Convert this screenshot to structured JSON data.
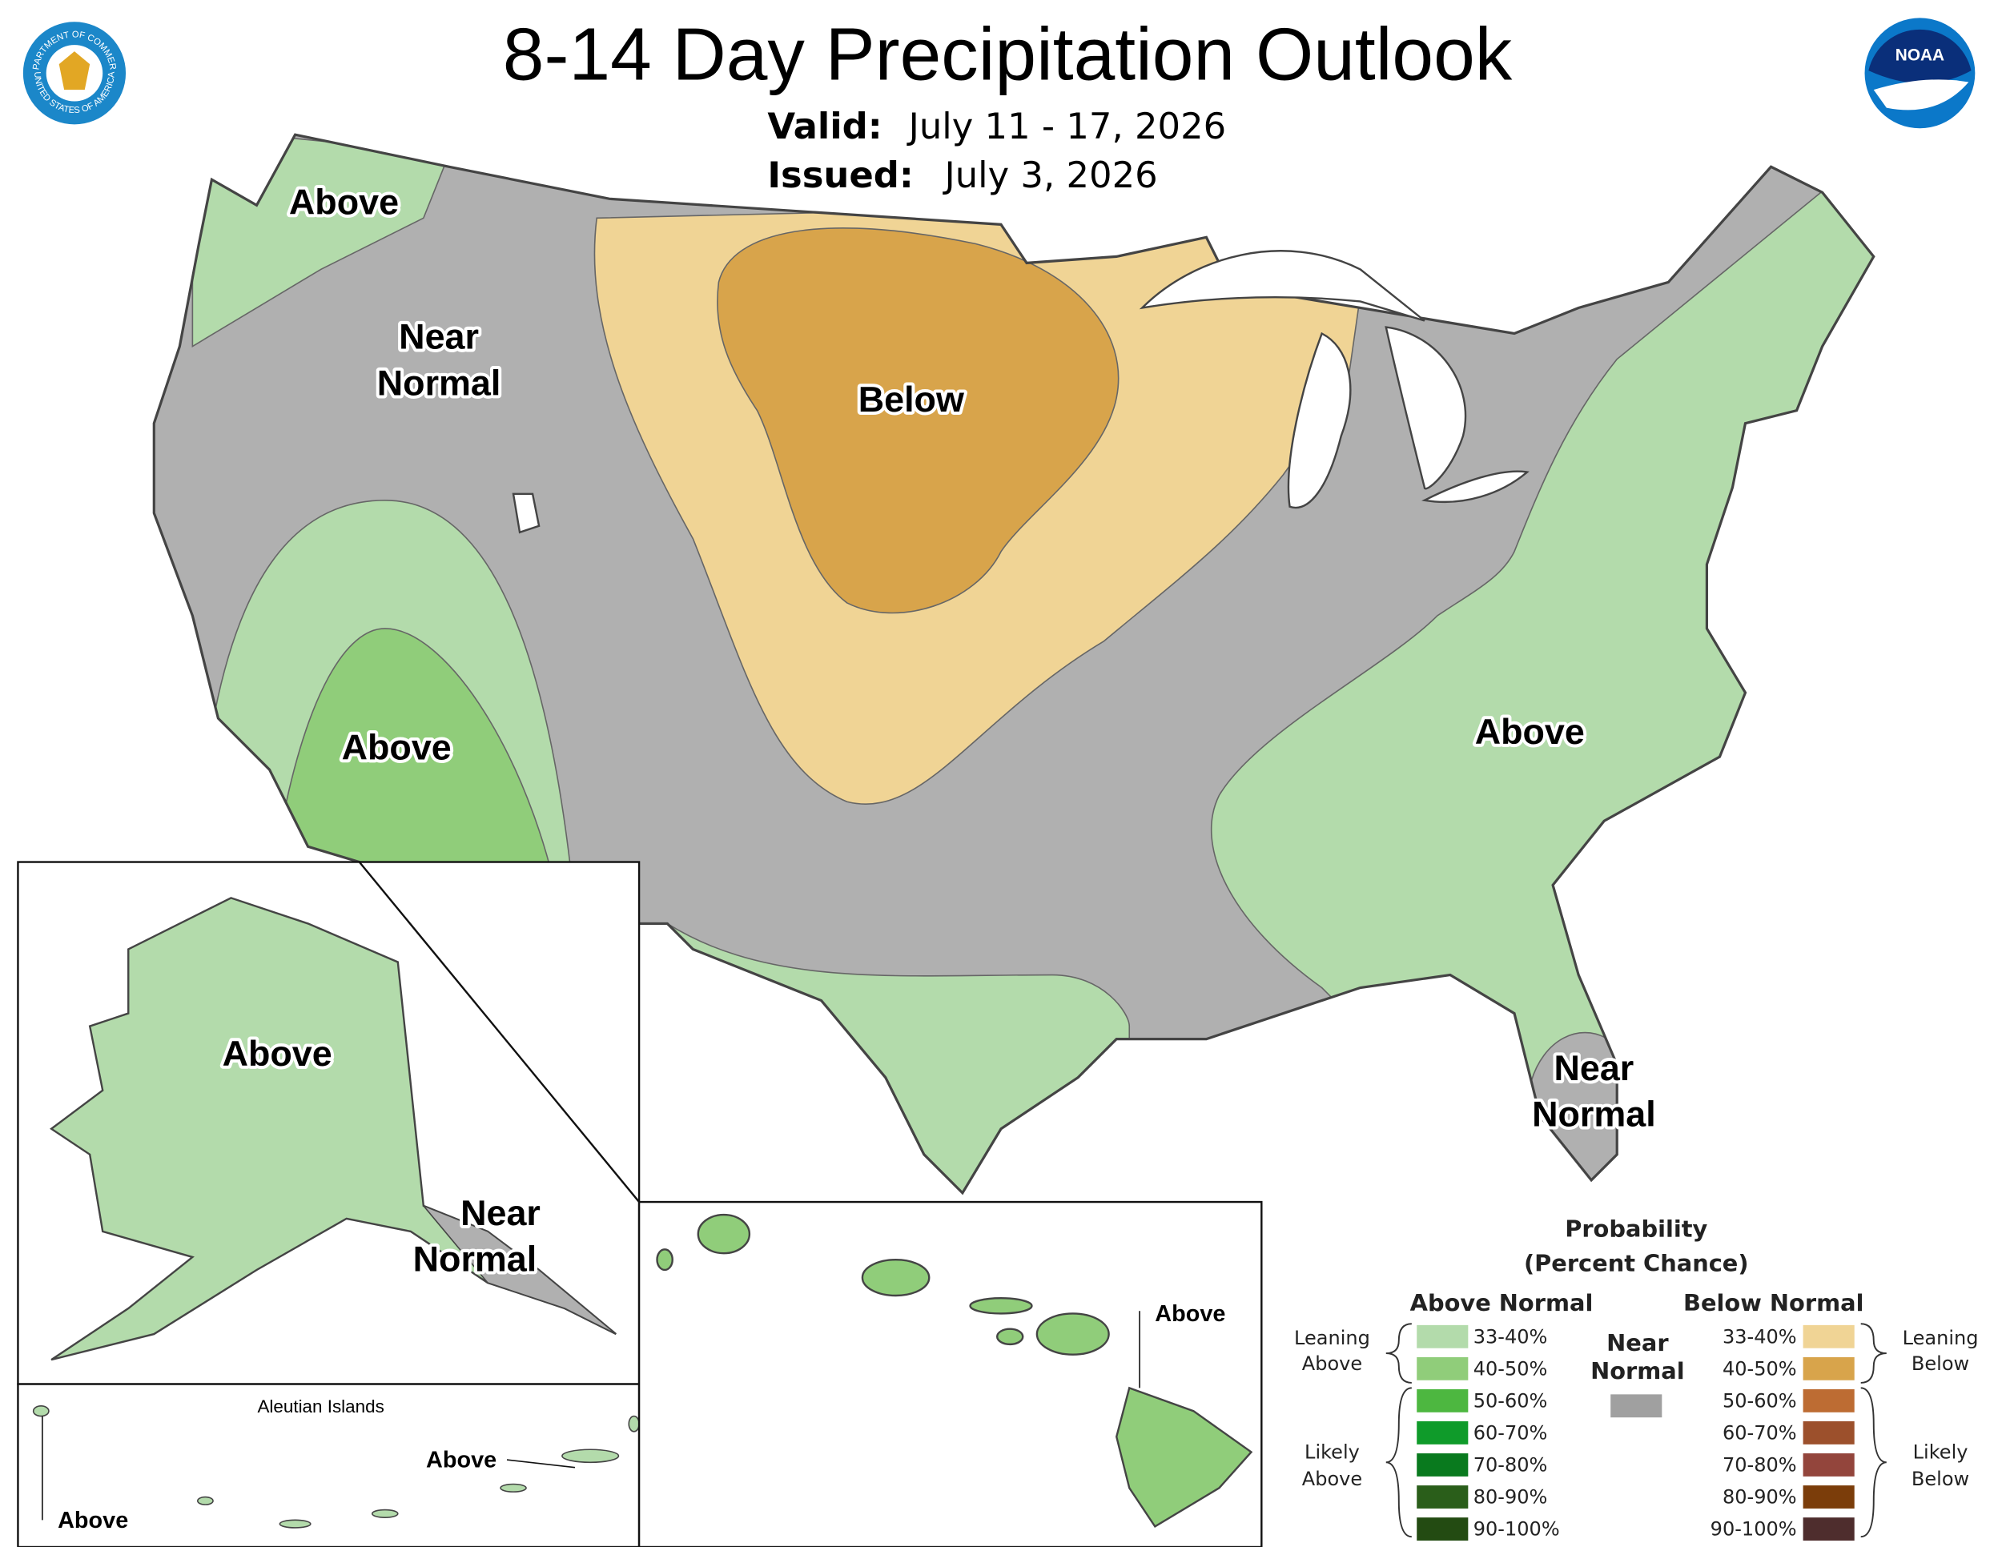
{
  "header": {
    "title": "8-14 Day Precipitation Outlook",
    "valid_label": "Valid:",
    "valid": "July 11 - 17, 2026",
    "issued_label": "Issued:",
    "issued": "July 3, 2026"
  },
  "logos": {
    "commerce_top": "DEPARTMENT OF COMMERCE",
    "commerce_bottom": "UNITED STATES OF AMERICA",
    "noaa": "NOAA"
  },
  "map_labels": {
    "northwest": "Above",
    "west": [
      "Near",
      "Normal"
    ],
    "north_central": "Below",
    "southwest": "Above",
    "southeast": "Above",
    "florida": [
      "Near",
      "Normal"
    ],
    "alaska": "Above",
    "alaska_southeast": [
      "Near",
      "Normal"
    ],
    "hawaii": "Above",
    "aleutian_title": "Aleutian Islands",
    "aleutian_east": "Above",
    "aleutian_west": "Above"
  },
  "legend": {
    "title": [
      "Probability",
      "(Percent Chance)"
    ],
    "above_header": "Above Normal",
    "below_header": "Below Normal",
    "near": [
      "Near",
      "Normal"
    ],
    "near_color": "#a0a0a0",
    "above": [
      {
        "label": "33-40%",
        "color": "#b3dbab"
      },
      {
        "label": "40-50%",
        "color": "#90cd7a"
      },
      {
        "label": "50-60%",
        "color": "#4db740"
      },
      {
        "label": "60-70%",
        "color": "#0f9b2a"
      },
      {
        "label": "70-80%",
        "color": "#097a1e"
      },
      {
        "label": "80-90%",
        "color": "#2a5e1a"
      },
      {
        "label": "90-100%",
        "color": "#234b12"
      }
    ],
    "below": [
      {
        "label": "33-40%",
        "color": "#f0d495"
      },
      {
        "label": "40-50%",
        "color": "#d8a44b"
      },
      {
        "label": "50-60%",
        "color": "#bd6c33"
      },
      {
        "label": "60-70%",
        "color": "#9c502c"
      },
      {
        "label": "70-80%",
        "color": "#93453c"
      },
      {
        "label": "80-90%",
        "color": "#7b3d0a"
      },
      {
        "label": "90-100%",
        "color": "#4e2d2d"
      }
    ],
    "leaning_above": [
      "Leaning",
      "Above"
    ],
    "likely_above": [
      "Likely",
      "Above"
    ],
    "leaning_below": [
      "Leaning",
      "Below"
    ],
    "likely_below": [
      "Likely",
      "Below"
    ]
  }
}
